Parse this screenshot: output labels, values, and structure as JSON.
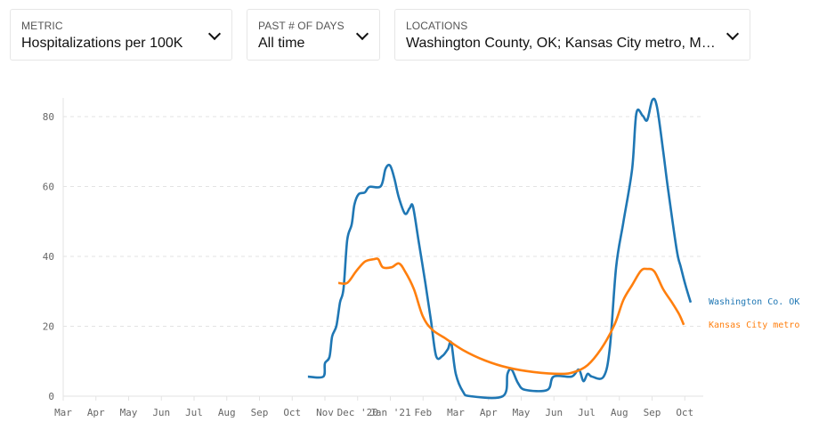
{
  "filters": [
    {
      "label": "METRIC",
      "value": "Hospitalizations per 100K"
    },
    {
      "label": "PAST # OF DAYS",
      "value": "All time"
    },
    {
      "label": "LOCATIONS",
      "value": "Washington County, OK; Kansas City metro, MO..."
    }
  ],
  "chart_data": {
    "type": "line",
    "title": "",
    "xlabel": "",
    "ylabel": "Hospitalizations per 100K",
    "x_unit": "months since Mar 2020",
    "x_ticks": [
      "Mar",
      "Apr",
      "May",
      "Jun",
      "Jul",
      "Aug",
      "Sep",
      "Oct",
      "Nov",
      "Dec '20",
      "Jan '21",
      "Feb",
      "Mar",
      "Apr",
      "May",
      "Jun",
      "Jul",
      "Aug",
      "Sep",
      "Oct"
    ],
    "y_ticks": [
      0,
      20,
      40,
      60,
      80
    ],
    "xlim": [
      0,
      19.6
    ],
    "ylim": [
      0,
      85
    ],
    "grid": "horizontal dashed",
    "series": [
      {
        "name": "Washington Co. OK",
        "color": "#1f77b4",
        "x": [
          7.48,
          7.95,
          8.0,
          8.14,
          8.22,
          8.35,
          8.46,
          8.57,
          8.68,
          8.82,
          8.9,
          9.03,
          9.22,
          9.36,
          9.71,
          9.85,
          9.99,
          10.12,
          10.26,
          10.45,
          10.59,
          10.69,
          10.86,
          11.07,
          11.24,
          11.4,
          11.59,
          11.76,
          11.86,
          12.0,
          12.22,
          12.44,
          13.44,
          13.58,
          13.71,
          13.9,
          14.12,
          14.8,
          14.99,
          15.54,
          15.76,
          15.9,
          16.03,
          16.16,
          16.52,
          16.71,
          16.9,
          17.12,
          17.39,
          17.52,
          17.71,
          17.85,
          18.01,
          18.15,
          18.34,
          18.48,
          18.75,
          18.88,
          19.02,
          19.18
        ],
        "y": [
          5.6,
          5.6,
          9.4,
          11.2,
          17.1,
          20.1,
          26.8,
          30.8,
          44.6,
          49.2,
          54.8,
          57.8,
          58.3,
          59.9,
          60.1,
          65,
          66,
          62.4,
          56.8,
          52.2,
          53.8,
          54.3,
          44.6,
          32.4,
          21.7,
          11.5,
          11.5,
          13.5,
          15.3,
          6.4,
          1.3,
          0,
          0,
          6.4,
          7.6,
          3.8,
          1.8,
          1.8,
          5.6,
          5.6,
          7.6,
          4.3,
          6.4,
          5.6,
          5.6,
          14,
          36.9,
          49.7,
          65,
          81,
          80.3,
          79,
          84.8,
          82.8,
          70.1,
          59.9,
          42,
          36.9,
          31.8,
          26.8
        ]
      },
      {
        "name": "Kansas City metro",
        "color": "#ff7f0e",
        "x": [
          8.41,
          8.68,
          8.95,
          9.22,
          9.5,
          9.63,
          9.77,
          10.04,
          10.26,
          10.45,
          10.72,
          10.99,
          11.27,
          11.67,
          12.22,
          12.9,
          13.58,
          14.39,
          15.21,
          15.62,
          16.03,
          16.44,
          16.85,
          17.12,
          17.39,
          17.66,
          17.85,
          18.07,
          18.34,
          18.61,
          18.83,
          18.97
        ],
        "y": [
          32.4,
          32.4,
          35.7,
          38.5,
          39.2,
          39.2,
          36.9,
          36.9,
          38,
          35.7,
          30.6,
          22.9,
          19.1,
          16.6,
          13.2,
          10.2,
          8.2,
          6.9,
          6.4,
          6.9,
          8.9,
          13.5,
          20.4,
          27.5,
          31.8,
          35.9,
          36.4,
          35.7,
          30.6,
          26.8,
          23.4,
          20.4
        ]
      }
    ]
  }
}
